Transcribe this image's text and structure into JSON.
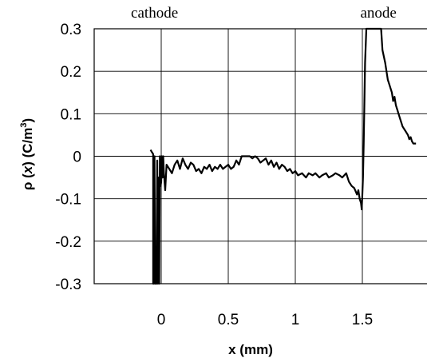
{
  "chart_data": {
    "type": "line",
    "title": "",
    "xlabel": "x (mm)",
    "ylabel": "ρ(x) (C/m³)",
    "ylabel_parts": {
      "pre": "ρ (",
      "var": "x",
      "mid": ") (C/m",
      "sup": "3",
      "post": ")"
    },
    "xlim": [
      -0.5,
      2.0
    ],
    "ylim": [
      -0.3,
      0.3
    ],
    "grid": true,
    "xticks": [
      0,
      0.5,
      1,
      1.5
    ],
    "xtick_labels": [
      "0",
      "0.5",
      "1",
      "1.5"
    ],
    "yticks": [
      0.3,
      0.2,
      0.1,
      0,
      -0.1,
      -0.2,
      -0.3
    ],
    "ytick_labels": [
      "0.3",
      "0.2",
      "0.1",
      "0",
      "-0.1",
      "-0.2",
      "-0.3"
    ],
    "annotations": [
      {
        "text": "cathode",
        "x": -0.05
      },
      {
        "text": "anode",
        "x": 1.62
      }
    ],
    "series": [
      {
        "x": [
          -0.08,
          -0.07,
          -0.06,
          -0.06,
          -0.055,
          -0.05,
          -0.045,
          -0.035,
          -0.03,
          -0.025,
          -0.02,
          -0.015,
          -0.01,
          -0.005,
          0.0,
          0.005,
          0.01,
          0.015,
          0.02,
          0.03,
          0.04,
          0.06,
          0.08,
          0.1,
          0.12,
          0.14,
          0.16,
          0.18,
          0.2,
          0.22,
          0.24,
          0.26,
          0.28,
          0.3,
          0.32,
          0.34,
          0.36,
          0.38,
          0.4,
          0.42,
          0.44,
          0.46,
          0.48,
          0.5,
          0.52,
          0.54,
          0.56,
          0.58,
          0.6,
          0.62,
          0.64,
          0.66,
          0.68,
          0.7,
          0.72,
          0.74,
          0.76,
          0.78,
          0.8,
          0.82,
          0.84,
          0.86,
          0.88,
          0.9,
          0.92,
          0.94,
          0.96,
          0.98,
          1.0,
          1.02,
          1.05,
          1.08,
          1.1,
          1.13,
          1.15,
          1.18,
          1.2,
          1.23,
          1.25,
          1.28,
          1.3,
          1.33,
          1.35,
          1.38,
          1.4,
          1.42,
          1.44,
          1.46,
          1.47,
          1.48,
          1.49,
          1.495,
          1.5,
          1.505,
          1.51,
          1.515,
          1.52,
          1.53,
          1.54,
          1.55,
          1.56,
          1.58,
          1.6,
          1.62,
          1.63,
          1.64,
          1.65,
          1.67,
          1.69,
          1.7,
          1.72,
          1.73,
          1.74,
          1.75,
          1.76,
          1.78,
          1.8,
          1.82,
          1.84,
          1.85,
          1.86,
          1.87,
          1.88,
          1.9
        ],
        "y": [
          0.015,
          0.01,
          0.005,
          -0.3,
          -0.3,
          0.0,
          -0.3,
          -0.3,
          -0.01,
          -0.3,
          -0.05,
          -0.3,
          0.0,
          -0.07,
          -0.06,
          0.0,
          -0.05,
          0.0,
          -0.04,
          -0.08,
          -0.02,
          -0.03,
          -0.04,
          -0.02,
          -0.01,
          -0.03,
          -0.005,
          -0.02,
          -0.03,
          -0.015,
          -0.02,
          -0.035,
          -0.03,
          -0.04,
          -0.025,
          -0.03,
          -0.02,
          -0.035,
          -0.025,
          -0.03,
          -0.02,
          -0.03,
          -0.025,
          -0.02,
          -0.03,
          -0.025,
          -0.01,
          -0.02,
          0.0,
          0.0,
          0.0,
          0.0,
          -0.005,
          0.0,
          -0.005,
          -0.015,
          -0.01,
          -0.005,
          -0.02,
          -0.01,
          -0.025,
          -0.015,
          -0.03,
          -0.02,
          -0.025,
          -0.035,
          -0.03,
          -0.04,
          -0.035,
          -0.045,
          -0.04,
          -0.05,
          -0.04,
          -0.045,
          -0.04,
          -0.05,
          -0.045,
          -0.04,
          -0.05,
          -0.045,
          -0.04,
          -0.045,
          -0.05,
          -0.04,
          -0.06,
          -0.07,
          -0.075,
          -0.09,
          -0.08,
          -0.1,
          -0.11,
          -0.125,
          -0.09,
          -0.05,
          0.03,
          0.12,
          0.22,
          0.3,
          0.3,
          0.3,
          0.3,
          0.3,
          0.3,
          0.3,
          0.3,
          0.3,
          0.25,
          0.22,
          0.18,
          0.17,
          0.15,
          0.13,
          0.14,
          0.12,
          0.11,
          0.09,
          0.07,
          0.06,
          0.05,
          0.04,
          0.045,
          0.035,
          0.03,
          0.03
        ]
      }
    ]
  }
}
